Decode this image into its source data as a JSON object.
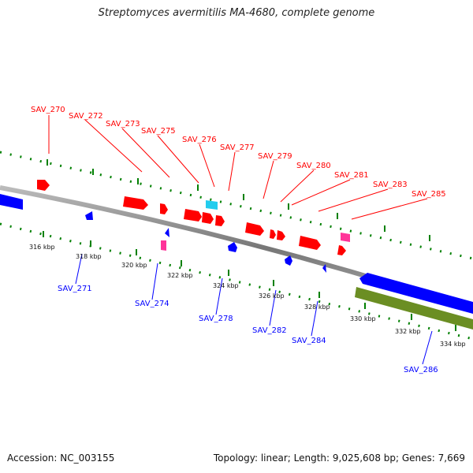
{
  "title": "Streptomyces avermitilis MA-4680, complete genome",
  "footer": {
    "accession": "Accession: NC_003155",
    "summary": "Topology: linear; Length: 9,025,608 bp; Genes: 7,669"
  },
  "colors": {
    "forward": "#ff0000",
    "reverse": "#0000ff",
    "backbone": "#888888",
    "ticks": "#008000",
    "rna_pink": "#ff3399",
    "rna_cyan": "#22ccee",
    "olive": "#6b8e23"
  },
  "scale": [
    "316 kbp",
    "318 kbp",
    "320 kbp",
    "322 kbp",
    "324 kbp",
    "326 kbp",
    "328 kbp",
    "330 kbp",
    "332 kbp",
    "334 kbp"
  ],
  "top_labels": [
    "SAV_270",
    "SAV_272",
    "SAV_273",
    "SAV_275",
    "SAV_276",
    "SAV_277",
    "SAV_279",
    "SAV_280",
    "SAV_281",
    "SAV_283",
    "SAV_285"
  ],
  "bottom_labels": [
    "SAV_271",
    "SAV_274",
    "SAV_278",
    "SAV_282",
    "SAV_284",
    "SAV_286"
  ]
}
